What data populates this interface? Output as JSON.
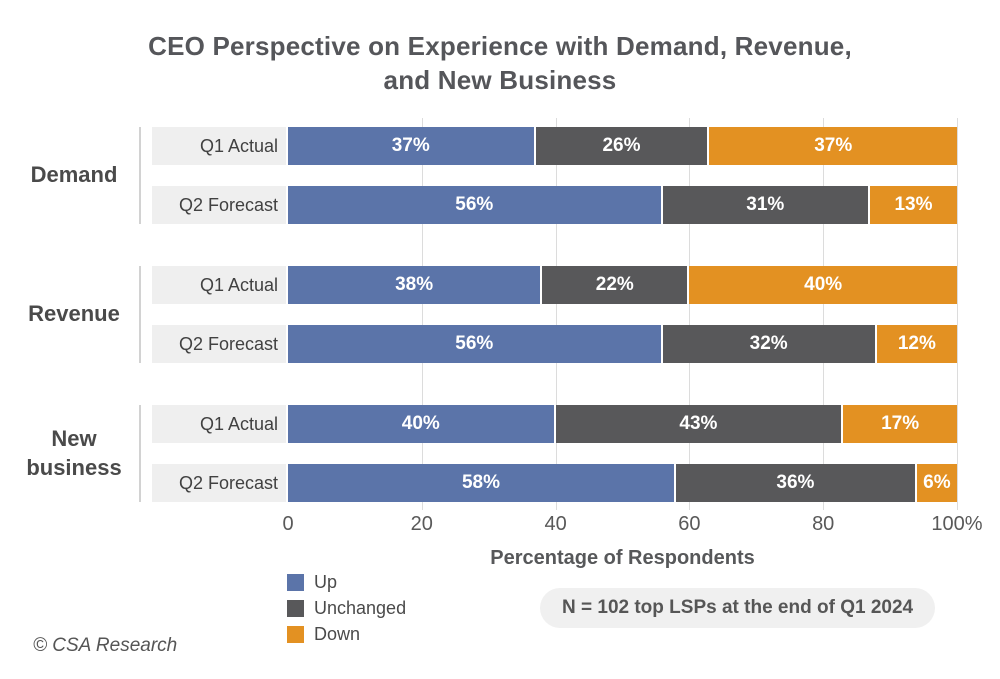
{
  "title": "CEO Perspective on Experience with Demand, Revenue,\nand New Business",
  "chart_data": {
    "type": "bar",
    "stacked": true,
    "orientation": "horizontal",
    "title": "CEO Perspective on Experience with Demand, Revenue, and New Business",
    "xlabel": "Percentage of Respondents",
    "xlim": [
      0,
      100
    ],
    "grid": true,
    "legend_position": "bottom-left",
    "tick_values": [
      0,
      20,
      40,
      60,
      80,
      100
    ],
    "tick_labels": [
      "0",
      "20",
      "40",
      "60",
      "80",
      "100%"
    ],
    "series": [
      {
        "name": "Up",
        "color": "#5b74a9"
      },
      {
        "name": "Unchanged",
        "color": "#58585a"
      },
      {
        "name": "Down",
        "color": "#e39122"
      }
    ],
    "groups": [
      {
        "label": "Demand",
        "rows": [
          {
            "label": "Q1 Actual",
            "values": [
              37,
              26,
              37
            ],
            "value_labels": [
              "37%",
              "26%",
              "37%"
            ]
          },
          {
            "label": "Q2 Forecast",
            "values": [
              56,
              31,
              13
            ],
            "value_labels": [
              "56%",
              "31%",
              "13%"
            ]
          }
        ]
      },
      {
        "label": "Revenue",
        "rows": [
          {
            "label": "Q1 Actual",
            "values": [
              38,
              22,
              40
            ],
            "value_labels": [
              "38%",
              "22%",
              "40%"
            ]
          },
          {
            "label": "Q2 Forecast",
            "values": [
              56,
              32,
              12
            ],
            "value_labels": [
              "56%",
              "32%",
              "12%"
            ]
          }
        ]
      },
      {
        "label": "New business",
        "rows": [
          {
            "label": "Q1 Actual",
            "values": [
              40,
              43,
              17
            ],
            "value_labels": [
              "40%",
              "43%",
              "17%"
            ]
          },
          {
            "label": "Q2 Forecast",
            "values": [
              58,
              36,
              6
            ],
            "value_labels": [
              "58%",
              "36%",
              "6%"
            ]
          }
        ]
      }
    ]
  },
  "note": {
    "text": "N = 102 top LSPs at the end of Q1 2024"
  },
  "footer": {
    "copyright": "© CSA Research"
  }
}
